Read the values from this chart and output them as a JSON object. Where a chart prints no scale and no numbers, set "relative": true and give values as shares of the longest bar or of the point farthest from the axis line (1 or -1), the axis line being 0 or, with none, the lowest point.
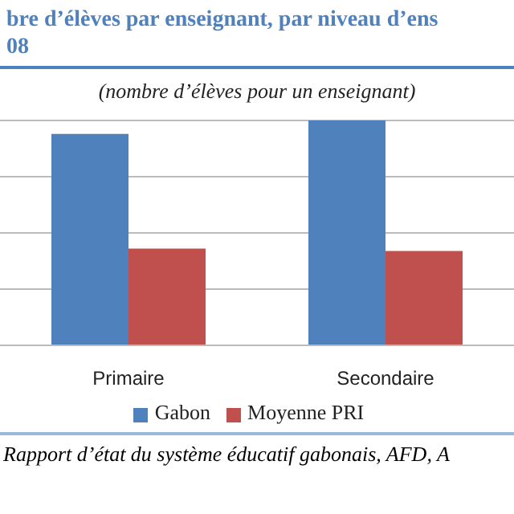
{
  "chart_data": {
    "type": "bar",
    "title": "bre d’élèves par enseignant, par niveau d’ens\n08",
    "subtitle": "(nombre d’élèves pour un enseignant)",
    "categories": [
      "Primaire",
      "Secondaire"
    ],
    "relative": true,
    "series": [
      {
        "name": "Gabon",
        "color": "#4f81bd",
        "values": [
          0.94,
          1
        ]
      },
      {
        "name": "Moyenne PRI",
        "color": "#c0504d",
        "values": [
          0.43,
          0.42
        ]
      }
    ],
    "grid": "y",
    "legend": "bottom",
    "annotations": [
      "Rapport d’état du système éducatif gabonais, AFD, A"
    ]
  }
}
